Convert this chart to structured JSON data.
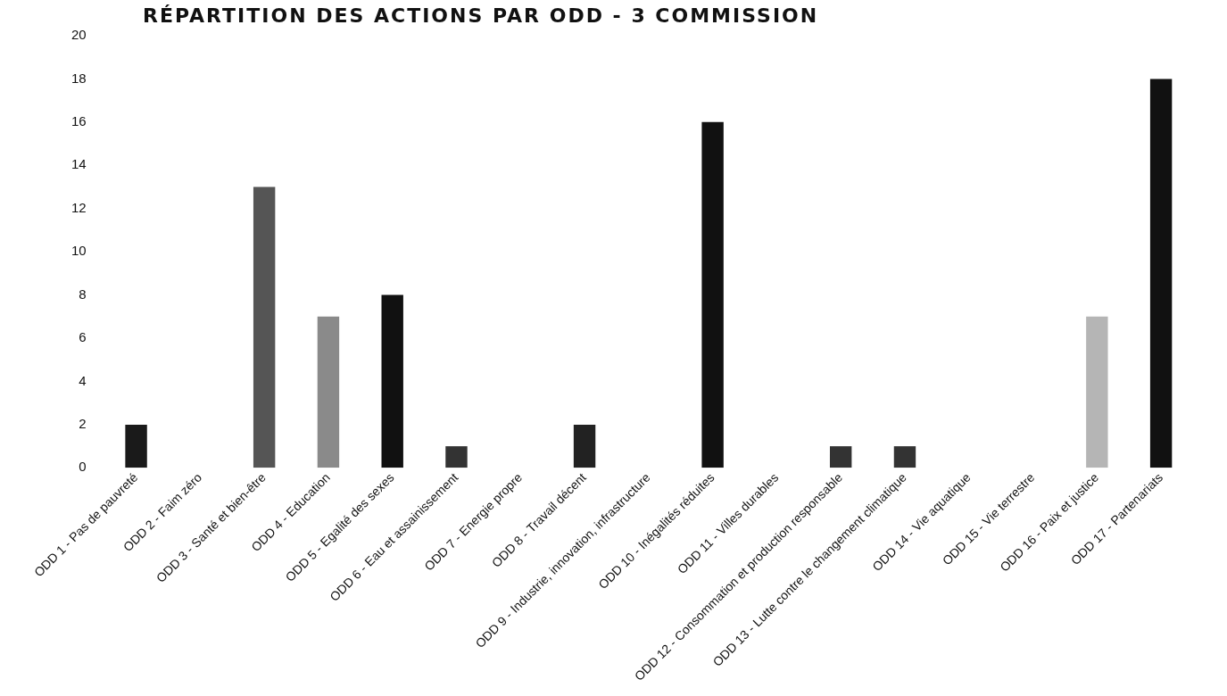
{
  "chart_data": {
    "type": "bar",
    "title": "RÉPARTITION DES ACTIONS PAR ODD - 3 COMMISSION",
    "categories": [
      "ODD 1 - Pas de pauvreté",
      "ODD 2 - Faim zéro",
      "ODD 3 - Santé et bien-être",
      "ODD 4 - Education",
      "ODD 5 - Egalité des sexes",
      "ODD 6 - Eau et assainissement",
      "ODD 7 - Energie propre",
      "ODD 8 - Travail décent",
      "ODD 9 - Industrie, innovation, infrastructure",
      "ODD 10 - Inégalités réduites",
      "ODD 11 - Villes durables",
      "ODD 12 - Consommation et production responsable",
      "ODD 13 - Lutte contre le changement climatique",
      "ODD 14 - Vie aquatique",
      "ODD 15 - Vie terrestre",
      "ODD 16 - Paix et justice",
      "ODD 17 - Partenariats"
    ],
    "values": [
      2,
      0,
      13,
      7,
      8,
      1,
      0,
      2,
      0,
      16,
      0,
      1,
      1,
      0,
      0,
      7,
      18
    ],
    "colors": [
      "#1a1a1a",
      "#1a1a1a",
      "#555555",
      "#8a8a8a",
      "#111111",
      "#333333",
      "#1a1a1a",
      "#222222",
      "#1a1a1a",
      "#111111",
      "#1a1a1a",
      "#333333",
      "#333333",
      "#1a1a1a",
      "#1a1a1a",
      "#b5b5b5",
      "#111111"
    ],
    "ylim": [
      0,
      20
    ],
    "yticks": [
      0,
      2,
      4,
      6,
      8,
      10,
      12,
      14,
      16,
      18,
      20
    ],
    "grid": false,
    "legend": false
  }
}
